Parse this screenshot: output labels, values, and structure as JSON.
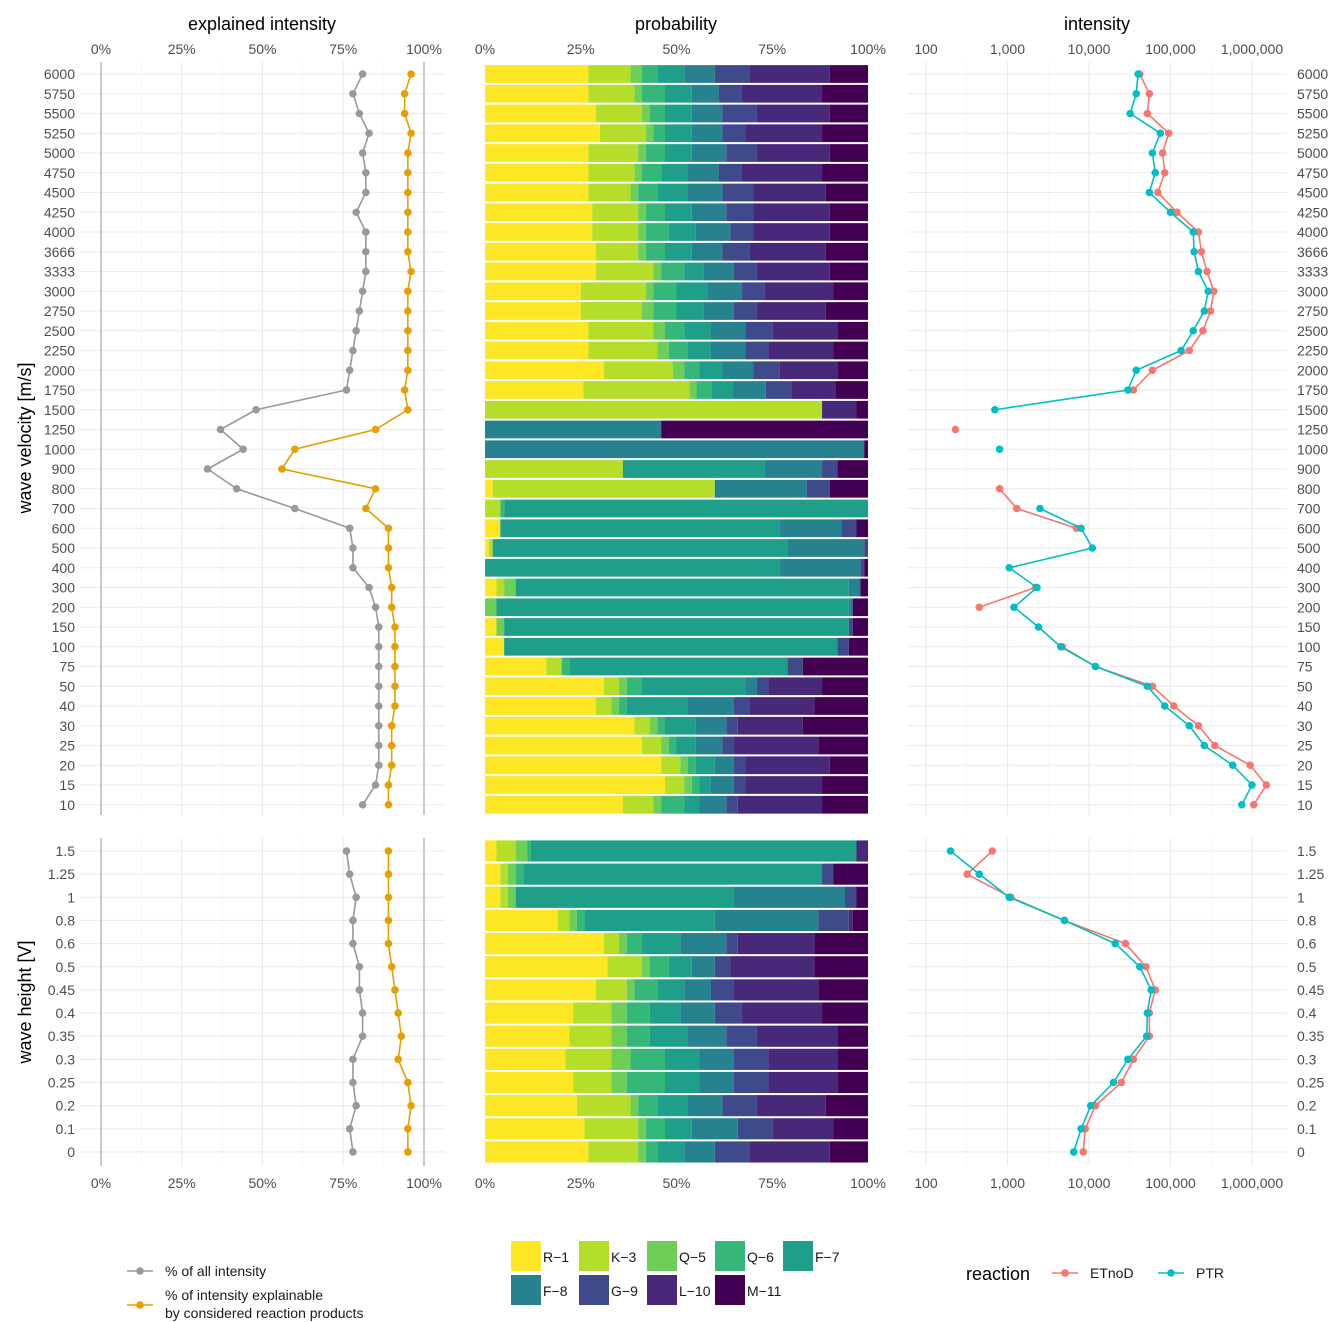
{
  "chart_data": {
    "type": "composite",
    "panel_titles": {
      "left": "explained intensity",
      "middle": "probability",
      "right": "intensity"
    },
    "y_labels": {
      "velocity": "wave velocity [m/s]",
      "height": "wave height [V]"
    },
    "pct_ticks": [
      "0%",
      "25%",
      "50%",
      "75%",
      "100%"
    ],
    "log_ticks": [
      "100",
      "1,000",
      "10,000",
      "100,000",
      "1,000,000"
    ],
    "log_xlim": [
      100,
      1000000
    ],
    "velocity": [
      "6000",
      "5750",
      "5500",
      "5250",
      "5000",
      "4750",
      "4500",
      "4250",
      "4000",
      "3666",
      "3333",
      "3000",
      "2750",
      "2500",
      "2250",
      "2000",
      "1750",
      "1500",
      "1250",
      "1000",
      "900",
      "800",
      "700",
      "600",
      "500",
      "400",
      "300",
      "200",
      "150",
      "100",
      "75",
      "50",
      "40",
      "30",
      "25",
      "20",
      "15",
      "10"
    ],
    "height": [
      "1.5",
      "1.25",
      "1",
      "0.8",
      "0.6",
      "0.5",
      "0.45",
      "0.4",
      "0.35",
      "0.3",
      "0.25",
      "0.2",
      "0.1",
      "0"
    ],
    "categories": [
      "R−1",
      "K−3",
      "Q−5",
      "Q−6",
      "F−7",
      "F−8",
      "G−9",
      "L−10",
      "M−11"
    ],
    "colors": [
      "#FDE725",
      "#B5DE2B",
      "#6ECE58",
      "#35B779",
      "#1F9E89",
      "#26828E",
      "#3E4A89",
      "#482878",
      "#440154"
    ],
    "explained": {
      "series": [
        {
          "name": "% of all intensity",
          "color": "#999999",
          "velocity": [
            81,
            78,
            80,
            83,
            81,
            82,
            82,
            79,
            82,
            82,
            82,
            81,
            80,
            79,
            78,
            77,
            76,
            48,
            37,
            44,
            33,
            42,
            60,
            77,
            78,
            78,
            83,
            85,
            86,
            86,
            86,
            86,
            86,
            86,
            86,
            86,
            85,
            81
          ],
          "height": [
            76,
            77,
            79,
            78,
            78,
            80,
            80,
            81,
            81,
            78,
            78,
            79,
            77,
            78
          ]
        },
        {
          "name": "% of intensity explainable by considered reaction products",
          "color": "#E69F00",
          "velocity": [
            96,
            94,
            94,
            96,
            95,
            95,
            95,
            95,
            95,
            95,
            96,
            95,
            95,
            95,
            95,
            95,
            94,
            95,
            85,
            60,
            56,
            85,
            82,
            89,
            89,
            89,
            90,
            90,
            91,
            91,
            91,
            91,
            91,
            90,
            90,
            90,
            89,
            89
          ],
          "height": [
            89,
            89,
            89,
            89,
            89,
            90,
            91,
            92,
            93,
            92,
            95,
            96,
            95,
            95
          ]
        }
      ],
      "legend_lines": [
        [
          "% of all intensity"
        ],
        [
          "% of intensity explainable",
          "by considered reaction products"
        ]
      ]
    },
    "probability": {
      "velocity": [
        [
          27,
          11,
          3,
          4,
          7,
          8,
          9,
          21,
          10
        ],
        [
          27,
          12,
          2,
          6,
          7,
          7,
          6,
          21,
          12
        ],
        [
          29,
          12,
          2,
          4,
          7,
          8,
          9,
          19,
          10
        ],
        [
          30,
          12,
          2,
          3,
          7,
          8,
          6,
          20,
          12
        ],
        [
          27,
          13,
          2,
          5,
          7,
          9,
          8,
          19,
          10
        ],
        [
          27,
          12,
          2,
          5,
          7,
          8,
          6,
          21,
          12
        ],
        [
          27,
          11,
          2,
          5,
          8,
          9,
          8,
          19,
          11
        ],
        [
          28,
          12,
          2,
          5,
          7,
          9,
          7,
          20,
          10
        ],
        [
          28,
          12,
          2,
          6,
          7,
          9,
          6,
          20,
          10
        ],
        [
          29,
          11,
          2,
          5,
          7,
          8,
          7,
          20,
          11
        ],
        [
          29,
          15,
          2,
          6,
          5,
          8,
          6,
          19,
          10
        ],
        [
          25,
          17,
          2,
          6,
          8,
          9,
          6,
          18,
          9
        ],
        [
          25,
          16,
          3,
          6,
          7,
          8,
          6,
          18,
          11
        ],
        [
          27,
          17,
          3,
          5,
          7,
          9,
          7,
          17,
          8
        ],
        [
          27,
          18,
          3,
          5,
          6,
          9,
          6,
          17,
          9
        ],
        [
          31,
          18,
          3,
          4,
          6,
          8,
          7,
          15,
          8
        ],
        [
          27,
          29,
          2,
          4,
          6,
          9,
          7,
          12,
          9
        ],
        [
          0,
          88,
          0,
          0,
          0,
          0,
          0,
          9,
          3
        ],
        [
          0,
          0,
          0,
          0,
          0,
          46,
          0,
          0,
          54
        ],
        [
          0,
          0,
          0,
          0,
          0,
          99,
          0,
          0,
          1
        ],
        [
          0,
          36,
          0,
          0,
          37,
          15,
          4,
          0,
          8
        ],
        [
          2,
          58,
          0,
          0,
          0,
          24,
          6,
          0,
          10
        ],
        [
          0,
          4,
          0,
          1,
          95,
          0,
          0,
          0,
          0
        ],
        [
          4,
          0,
          0,
          0,
          73,
          16,
          4,
          0,
          3
        ],
        [
          1,
          1,
          0,
          0,
          77,
          20,
          1,
          0,
          0
        ],
        [
          0,
          0,
          0,
          0,
          77,
          21,
          1,
          0,
          1
        ],
        [
          3,
          2,
          3,
          0,
          87,
          3,
          0,
          0,
          2
        ],
        [
          0,
          0,
          3,
          0,
          92,
          1,
          0,
          0,
          4
        ],
        [
          3,
          0,
          2,
          0,
          90,
          0,
          1,
          0,
          4
        ],
        [
          5,
          0,
          0,
          0,
          87,
          0,
          3,
          0,
          5
        ],
        [
          16,
          4,
          0,
          2,
          57,
          0,
          4,
          0,
          17
        ],
        [
          31,
          4,
          2,
          4,
          27,
          3,
          3,
          14,
          12
        ],
        [
          29,
          4,
          2,
          2,
          16,
          12,
          4,
          17,
          14
        ],
        [
          39,
          4,
          2,
          2,
          8,
          8,
          3,
          17,
          17
        ],
        [
          41,
          5,
          2,
          2,
          5,
          7,
          3,
          22,
          13
        ],
        [
          46,
          5,
          2,
          2,
          5,
          5,
          3,
          22,
          10
        ],
        [
          47,
          5,
          2,
          2,
          3,
          6,
          3,
          20,
          12
        ],
        [
          36,
          8,
          2,
          6,
          4,
          7,
          3,
          22,
          12
        ]
      ],
      "height": [
        [
          3,
          5,
          3,
          1,
          85,
          0,
          0,
          3,
          0
        ],
        [
          4,
          2,
          2,
          2,
          78,
          0,
          3,
          0,
          9
        ],
        [
          4,
          2,
          2,
          0,
          57,
          29,
          3,
          0,
          3
        ],
        [
          19,
          3,
          2,
          2,
          34,
          27,
          8,
          1,
          4
        ],
        [
          31,
          4,
          2,
          4,
          10,
          12,
          3,
          20,
          14
        ],
        [
          32,
          9,
          2,
          5,
          6,
          6,
          4,
          22,
          14
        ],
        [
          29,
          8,
          2,
          6,
          7,
          7,
          6,
          22,
          13
        ],
        [
          23,
          10,
          4,
          6,
          8,
          9,
          7,
          21,
          12
        ],
        [
          22,
          11,
          4,
          6,
          10,
          10,
          8,
          21,
          8
        ],
        [
          21,
          12,
          5,
          9,
          9,
          9,
          9,
          18,
          8
        ],
        [
          23,
          10,
          4,
          10,
          9,
          9,
          9,
          18,
          8
        ],
        [
          24,
          14,
          2,
          5,
          8,
          9,
          9,
          18,
          11
        ],
        [
          26,
          14,
          2,
          5,
          7,
          12,
          9,
          16,
          9
        ],
        [
          27,
          13,
          2,
          3,
          7,
          8,
          9,
          21,
          10
        ]
      ]
    },
    "intensity": {
      "legend_title": "reaction",
      "series": [
        {
          "name": "ETnoD",
          "color": "#F8766D",
          "velocity": [
            42000,
            55000,
            52000,
            95000,
            80000,
            85000,
            70000,
            120000,
            220000,
            240000,
            280000,
            340000,
            310000,
            250000,
            170000,
            60000,
            35000,
            null,
            230,
            null,
            null,
            800,
            1300,
            7000,
            null,
            null,
            2200,
            450,
            null,
            4700,
            12000,
            60000,
            110000,
            220000,
            350000,
            950000,
            1500000,
            1050000
          ],
          "height": [
            650,
            320,
            1100,
            5000,
            28000,
            50000,
            65000,
            55000,
            55000,
            35000,
            25000,
            12000,
            9000,
            8500
          ]
        },
        {
          "name": "PTR",
          "color": "#00BFC4",
          "velocity": [
            40000,
            38000,
            32000,
            75000,
            60000,
            65000,
            55000,
            100000,
            190000,
            195000,
            220000,
            290000,
            260000,
            190000,
            135000,
            38000,
            30000,
            700,
            null,
            800,
            null,
            null,
            2500,
            8000,
            11000,
            1050,
            2300,
            1200,
            2400,
            4500,
            12000,
            52000,
            85000,
            170000,
            260000,
            580000,
            1000000,
            750000
          ],
          "height": [
            200,
            450,
            1050,
            5000,
            21000,
            42000,
            58000,
            52000,
            51000,
            30000,
            20000,
            10500,
            8000,
            6500
          ]
        }
      ]
    }
  }
}
